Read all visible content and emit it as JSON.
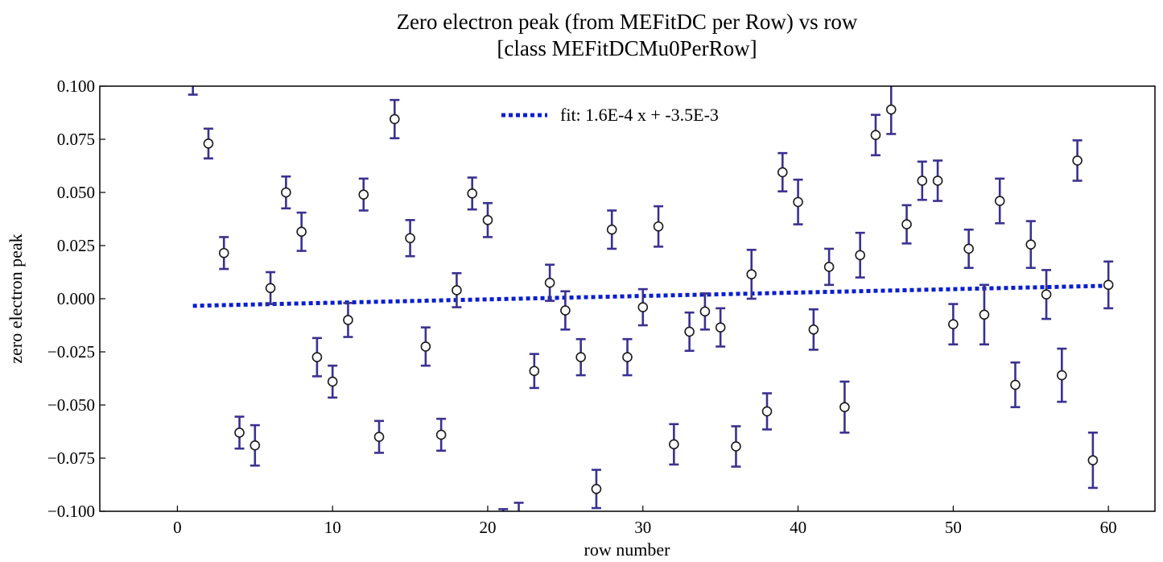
{
  "chart_data": {
    "type": "scatter",
    "title_line1": "Zero electron peak (from MEFitDC per Row) vs row",
    "title_line2": "[class MEFitDCMu0PerRow]",
    "xlabel": "row number",
    "ylabel": "zero electron peak",
    "xlim": [
      -5,
      63
    ],
    "ylim": [
      -0.1,
      0.1
    ],
    "x_ticks": [
      0,
      10,
      20,
      30,
      40,
      50,
      60
    ],
    "y_ticks": [
      -0.1,
      -0.075,
      -0.05,
      -0.025,
      0.0,
      0.025,
      0.05,
      0.075,
      0.1
    ],
    "x_tick_labels": [
      "0",
      "10",
      "20",
      "30",
      "40",
      "50",
      "60"
    ],
    "y_tick_labels": [
      "−0.100",
      "−0.075",
      "−0.050",
      "−0.025",
      "0.000",
      "0.025",
      "0.050",
      "0.075",
      "0.100"
    ],
    "grid": false,
    "legend_position": "top-center",
    "marker_color": "#ffffff",
    "marker_edge_color": "#1a1a1a",
    "errorbar_color": "#3a3191",
    "fit_color": "#0a1ecf",
    "series": [
      {
        "name": "data",
        "x": [
          1,
          2,
          3,
          4,
          5,
          6,
          7,
          8,
          9,
          10,
          11,
          12,
          13,
          14,
          15,
          16,
          17,
          18,
          19,
          20,
          21,
          22,
          23,
          24,
          25,
          26,
          27,
          28,
          29,
          30,
          31,
          32,
          33,
          34,
          35,
          36,
          37,
          38,
          39,
          40,
          41,
          42,
          43,
          44,
          45,
          46,
          47,
          48,
          49,
          50,
          51,
          52,
          53,
          54,
          55,
          56,
          57,
          58,
          59,
          60
        ],
        "y": [
          0.105,
          0.073,
          0.0215,
          -0.063,
          -0.069,
          0.005,
          0.05,
          0.0315,
          -0.0275,
          -0.039,
          -0.01,
          0.049,
          -0.065,
          0.0845,
          0.0285,
          -0.0225,
          -0.064,
          0.004,
          0.0495,
          0.037,
          -0.108,
          -0.105,
          -0.034,
          0.0075,
          -0.0055,
          -0.0275,
          -0.0895,
          0.0325,
          -0.0275,
          -0.004,
          0.034,
          -0.0685,
          -0.0155,
          -0.006,
          -0.0135,
          -0.0695,
          0.0115,
          -0.053,
          0.0595,
          0.0455,
          -0.0145,
          0.015,
          -0.051,
          0.0205,
          0.077,
          0.089,
          0.035,
          0.0555,
          0.0555,
          -0.012,
          0.0235,
          -0.0075,
          0.046,
          -0.0405,
          0.0255,
          0.002,
          -0.036,
          0.065,
          -0.076,
          0.0065
        ],
        "yerr": [
          0.009,
          0.007,
          0.0075,
          0.0075,
          0.0095,
          0.0075,
          0.0075,
          0.009,
          0.009,
          0.0075,
          0.008,
          0.0075,
          0.0075,
          0.009,
          0.0085,
          0.009,
          0.0075,
          0.008,
          0.0075,
          0.008,
          0.009,
          0.009,
          0.008,
          0.0085,
          0.009,
          0.0085,
          0.009,
          0.009,
          0.0085,
          0.0085,
          0.0095,
          0.0095,
          0.009,
          0.0085,
          0.009,
          0.0095,
          0.0115,
          0.0085,
          0.009,
          0.0105,
          0.0095,
          0.0085,
          0.012,
          0.0105,
          0.0095,
          0.0115,
          0.009,
          0.009,
          0.0095,
          0.0095,
          0.009,
          0.014,
          0.0105,
          0.0105,
          0.011,
          0.0115,
          0.0125,
          0.0095,
          0.013,
          0.011
        ]
      },
      {
        "name": "fit: 1.6E-4 x + -3.5E-3",
        "type": "line",
        "style": "dotted",
        "slope": 0.00016,
        "intercept": -0.0035,
        "x_range": [
          1,
          60
        ]
      }
    ]
  }
}
